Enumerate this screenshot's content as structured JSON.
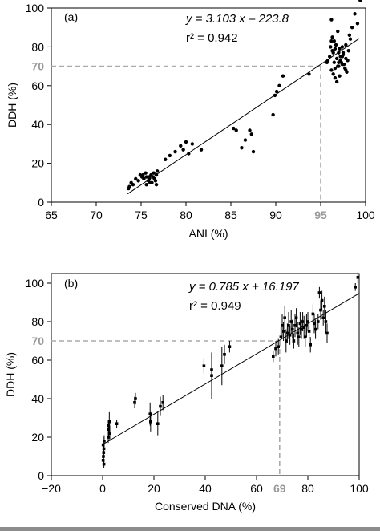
{
  "chart_data": [
    {
      "type": "scatter",
      "panel_label": "(a)",
      "xlabel": "ANI (%)",
      "ylabel": "DDH (%)",
      "xlim": [
        65,
        100
      ],
      "ylim": [
        0,
        100
      ],
      "xticks": [
        65,
        70,
        75,
        80,
        85,
        90,
        95,
        100
      ],
      "yticks": [
        0,
        20,
        40,
        60,
        80,
        100
      ],
      "ytick_labels": [
        "0",
        "20",
        "40",
        "60",
        "80",
        "100"
      ],
      "equation": "y = 3.103 x – 223.8",
      "r2": "r² = 0.942",
      "fit": {
        "slope": 3.103,
        "intercept": -223.8
      },
      "threshold": {
        "x": 95,
        "y": 70,
        "x_label": "95",
        "y_label": "70"
      },
      "grid": false,
      "x": [
        73.6,
        73.7,
        73.9,
        74.1,
        74.4,
        74.7,
        74.9,
        75.1,
        75.3,
        75.5,
        75.6,
        75.8,
        75.9,
        76.1,
        76.2,
        76.3,
        76.4,
        76.5,
        76.6,
        76.7,
        76.8,
        75.6,
        76.0,
        76.3,
        76.5,
        76.7,
        75.2,
        75.9,
        77.7,
        78.2,
        78.8,
        79.4,
        79.7,
        80.0,
        80.3,
        80.7,
        81.7,
        85.3,
        85.6,
        86.2,
        86.6,
        87.1,
        87.3,
        87.5,
        89.7,
        89.9,
        90.1,
        90.4,
        90.8,
        95.8,
        96.0,
        96.1,
        96.2,
        96.3,
        96.4,
        96.5,
        96.6,
        96.7,
        96.8,
        96.9,
        97.0,
        97.1,
        97.2,
        97.3,
        97.4,
        97.5,
        97.6,
        97.7,
        97.8,
        97.9,
        98.0,
        98.1,
        98.3,
        98.5,
        98.8,
        99.1,
        99.4,
        96.2,
        96.4,
        96.6,
        96.8,
        97.0,
        97.2,
        97.4,
        96.3,
        96.5,
        96.9,
        97.1,
        97.5,
        97.8,
        98.2,
        96.2,
        96.6,
        97.0,
        97.4,
        97.8,
        93.7,
        95.7
      ],
      "y": [
        7,
        8,
        10,
        9,
        12,
        11,
        14,
        13,
        12,
        15,
        13,
        11,
        12,
        14,
        10,
        13,
        15,
        12,
        11,
        14,
        16,
        9,
        10,
        13,
        12,
        9,
        14,
        13,
        22,
        24,
        26,
        29,
        27,
        31,
        25,
        30,
        27,
        38,
        37,
        28,
        32,
        37,
        35,
        26,
        45,
        55,
        57,
        60,
        65,
        73,
        75,
        80,
        83,
        85,
        77,
        72,
        79,
        81,
        74,
        70,
        77,
        79,
        75,
        72,
        80,
        76,
        71,
        69,
        74,
        67,
        73,
        78,
        84,
        90,
        97,
        92,
        104,
        68,
        66,
        64,
        62,
        70,
        73,
        71,
        78,
        83,
        88,
        65,
        77,
        81,
        86,
        94,
        69,
        72,
        75,
        68,
        66,
        72
      ],
      "xerr_present": false
    },
    {
      "type": "scatter",
      "panel_label": "(b)",
      "xlabel": "Conserved DNA (%)",
      "ylabel": "DDH (%)",
      "xlim": [
        -20,
        100
      ],
      "ylim": [
        0,
        105
      ],
      "xticks": [
        -20,
        0,
        20,
        40,
        60,
        80,
        100
      ],
      "xtick_labels": [
        "−20",
        "0",
        "20",
        "40",
        "60",
        "80",
        "100"
      ],
      "yticks": [
        0,
        20,
        40,
        60,
        80,
        100
      ],
      "ytick_labels": [
        "0",
        "20",
        "40",
        "60",
        "80",
        "100"
      ],
      "equation": "y = 0.785 x + 16.197",
      "r2": "r² = 0.949",
      "fit": {
        "slope": 0.785,
        "intercept": 16.197
      },
      "threshold": {
        "x": 69,
        "y": 70,
        "x_label": "69",
        "y_label": "70"
      },
      "grid": false,
      "points": [
        {
          "x": 0.2,
          "y": 8,
          "err": 2
        },
        {
          "x": 0.3,
          "y": 10,
          "err": 3
        },
        {
          "x": 0.4,
          "y": 12,
          "err": 4
        },
        {
          "x": 0.5,
          "y": 14,
          "err": 3
        },
        {
          "x": 0.2,
          "y": 16,
          "err": 4
        },
        {
          "x": 0.6,
          "y": 18,
          "err": 3
        },
        {
          "x": 0.5,
          "y": 6,
          "err": 2
        },
        {
          "x": 2.2,
          "y": 20,
          "err": 3
        },
        {
          "x": 2.4,
          "y": 24,
          "err": 4
        },
        {
          "x": 2.6,
          "y": 28,
          "err": 5
        },
        {
          "x": 2.3,
          "y": 26,
          "err": 3
        },
        {
          "x": 2.8,
          "y": 22,
          "err": 4
        },
        {
          "x": 5.5,
          "y": 27,
          "err": 2
        },
        {
          "x": 12.5,
          "y": 38,
          "err": 3
        },
        {
          "x": 12.8,
          "y": 40,
          "err": 3
        },
        {
          "x": 18.5,
          "y": 32,
          "err": 6
        },
        {
          "x": 18.7,
          "y": 28,
          "err": 5
        },
        {
          "x": 21.5,
          "y": 27,
          "err": 6
        },
        {
          "x": 22.5,
          "y": 36,
          "err": 5
        },
        {
          "x": 23.5,
          "y": 38,
          "err": 4
        },
        {
          "x": 39.5,
          "y": 57,
          "err": 4
        },
        {
          "x": 42.5,
          "y": 55,
          "err": 5
        },
        {
          "x": 42.5,
          "y": 52,
          "err": 12
        },
        {
          "x": 46.5,
          "y": 57,
          "err": 10
        },
        {
          "x": 47.5,
          "y": 63,
          "err": 5
        },
        {
          "x": 49.5,
          "y": 67,
          "err": 3
        },
        {
          "x": 66.5,
          "y": 62,
          "err": 3
        },
        {
          "x": 67.5,
          "y": 66,
          "err": 4
        },
        {
          "x": 68.5,
          "y": 67,
          "err": 4
        },
        {
          "x": 69.5,
          "y": 72,
          "err": 5
        },
        {
          "x": 70.0,
          "y": 78,
          "err": 6
        },
        {
          "x": 70.5,
          "y": 75,
          "err": 5
        },
        {
          "x": 71.0,
          "y": 82,
          "err": 6
        },
        {
          "x": 71.5,
          "y": 70,
          "err": 6
        },
        {
          "x": 72.0,
          "y": 74,
          "err": 5
        },
        {
          "x": 72.5,
          "y": 78,
          "err": 7
        },
        {
          "x": 73.0,
          "y": 73,
          "err": 5
        },
        {
          "x": 73.5,
          "y": 80,
          "err": 6
        },
        {
          "x": 74.0,
          "y": 76,
          "err": 5
        },
        {
          "x": 74.5,
          "y": 70,
          "err": 4
        },
        {
          "x": 75.0,
          "y": 78,
          "err": 6
        },
        {
          "x": 75.5,
          "y": 82,
          "err": 5
        },
        {
          "x": 76.0,
          "y": 74,
          "err": 6
        },
        {
          "x": 76.5,
          "y": 72,
          "err": 5
        },
        {
          "x": 77.0,
          "y": 79,
          "err": 6
        },
        {
          "x": 77.5,
          "y": 76,
          "err": 5
        },
        {
          "x": 78.0,
          "y": 80,
          "err": 5
        },
        {
          "x": 78.5,
          "y": 77,
          "err": 6
        },
        {
          "x": 79.0,
          "y": 72,
          "err": 5
        },
        {
          "x": 79.5,
          "y": 78,
          "err": 6
        },
        {
          "x": 80.0,
          "y": 80,
          "err": 5
        },
        {
          "x": 80.5,
          "y": 75,
          "err": 4
        },
        {
          "x": 81.0,
          "y": 68,
          "err": 4
        },
        {
          "x": 82.0,
          "y": 84,
          "err": 5
        },
        {
          "x": 82.5,
          "y": 79,
          "err": 5
        },
        {
          "x": 83.0,
          "y": 76,
          "err": 5
        },
        {
          "x": 84.0,
          "y": 80,
          "err": 4
        },
        {
          "x": 85.0,
          "y": 86,
          "err": 5
        },
        {
          "x": 85.5,
          "y": 91,
          "err": 5
        },
        {
          "x": 86.0,
          "y": 82,
          "err": 4
        },
        {
          "x": 86.5,
          "y": 88,
          "err": 5
        },
        {
          "x": 87.0,
          "y": 80,
          "err": 6
        },
        {
          "x": 87.5,
          "y": 74,
          "err": 5
        },
        {
          "x": 84.5,
          "y": 95,
          "err": 3
        },
        {
          "x": 98.5,
          "y": 98,
          "err": 2
        },
        {
          "x": 99.5,
          "y": 103,
          "err": 3
        }
      ]
    }
  ]
}
